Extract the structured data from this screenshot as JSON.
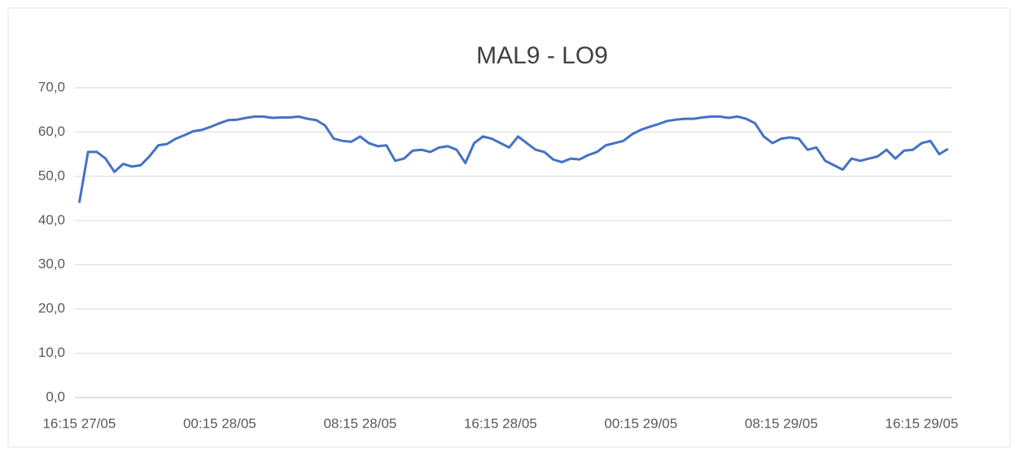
{
  "chart_data": {
    "type": "line",
    "title": "MAL9 - LO9",
    "categories": [
      "16:15 27/05",
      null,
      null,
      null,
      null,
      null,
      null,
      null,
      null,
      null,
      null,
      null,
      null,
      null,
      null,
      null,
      "00:15 28/05",
      null,
      null,
      null,
      null,
      null,
      null,
      null,
      null,
      null,
      null,
      null,
      null,
      null,
      null,
      null,
      "08:15 28/05",
      null,
      null,
      null,
      null,
      null,
      null,
      null,
      null,
      null,
      null,
      null,
      null,
      null,
      null,
      null,
      "16:15 28/05",
      null,
      null,
      null,
      null,
      null,
      null,
      null,
      null,
      null,
      null,
      null,
      null,
      null,
      null,
      null,
      "00:15 29/05",
      null,
      null,
      null,
      null,
      null,
      null,
      null,
      null,
      null,
      null,
      null,
      null,
      null,
      null,
      null,
      "08:15 29/05",
      null,
      null,
      null,
      null,
      null,
      null,
      null,
      null,
      null,
      null,
      null,
      null,
      null,
      null,
      null,
      "16:15 29/05",
      null,
      null,
      null
    ],
    "series": [
      {
        "name": "MAL9 - LO9",
        "color": "#4472c4",
        "values": [
          44,
          55.5,
          55.5,
          54,
          51,
          52.8,
          52.2,
          52.5,
          54.5,
          57,
          57.3,
          58.5,
          59.3,
          60.2,
          60.5,
          61.2,
          62,
          62.7,
          62.8,
          63.2,
          63.5,
          63.5,
          63.2,
          63.3,
          63.3,
          63.5,
          63,
          62.7,
          61.5,
          58.5,
          58,
          57.8,
          59,
          57.5,
          56.8,
          57,
          53.5,
          54,
          55.8,
          56,
          55.5,
          56.5,
          56.8,
          56,
          53,
          57.5,
          59,
          58.5,
          57.5,
          56.5,
          59,
          57.5,
          56,
          55.5,
          53.8,
          53.2,
          54,
          53.8,
          54.8,
          55.5,
          57,
          57.5,
          58,
          59.5,
          60.5,
          61.2,
          61.8,
          62.5,
          62.8,
          63,
          63,
          63.3,
          63.5,
          63.5,
          63.2,
          63.5,
          63,
          62,
          59,
          57.5,
          58.5,
          58.8,
          58.5,
          56,
          56.5,
          53.5,
          52.5,
          51.5,
          54,
          53.5,
          54,
          54.5,
          56,
          54,
          55.8,
          56,
          57.5,
          58,
          55,
          56.2
        ]
      }
    ],
    "ylim": [
      0,
      70
    ],
    "yticks": [
      {
        "value": 0,
        "label": "0,0"
      },
      {
        "value": 10,
        "label": "10,0"
      },
      {
        "value": 20,
        "label": "20,0"
      },
      {
        "value": 30,
        "label": "30,0"
      },
      {
        "value": 40,
        "label": "40,0"
      },
      {
        "value": 50,
        "label": "50,0"
      },
      {
        "value": 60,
        "label": "60,0"
      },
      {
        "value": 70,
        "label": "70,0"
      }
    ],
    "grid": true
  }
}
